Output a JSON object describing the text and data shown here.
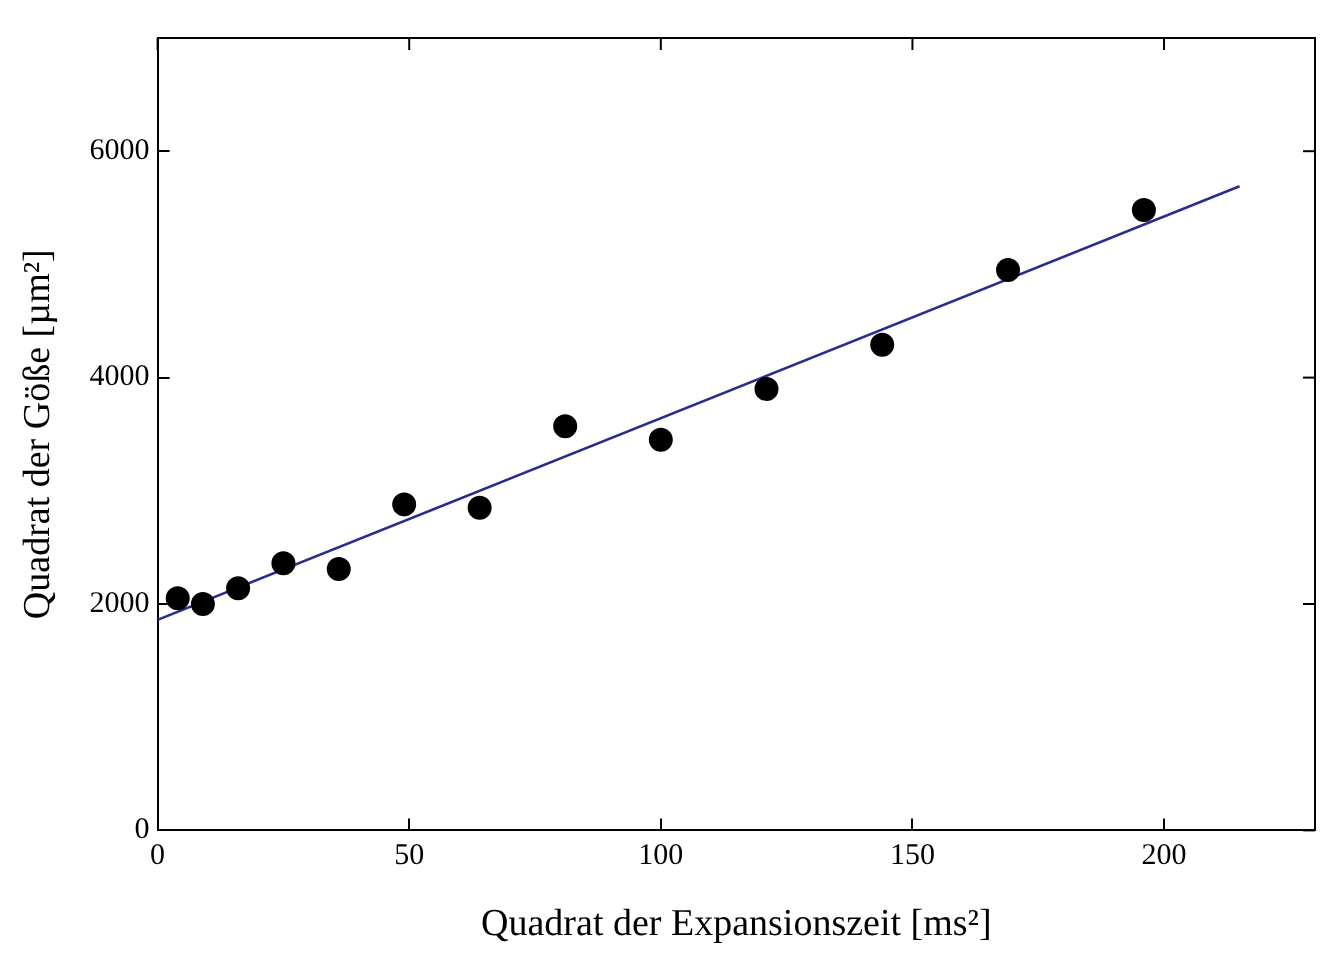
{
  "chart_data": {
    "type": "scatter",
    "xlabel": "Quadrat der Expansionszeit [ms²]",
    "ylabel": "Quadrat der Göße [µm²]",
    "xlim": [
      0,
      230
    ],
    "xticks": [
      0,
      50,
      100,
      150,
      200
    ],
    "ylim": [
      0,
      7000
    ],
    "yticks": [
      0,
      2000,
      4000,
      6000
    ],
    "grid": false,
    "legend": false,
    "series": [
      {
        "color": "#000000",
        "marker": "circle",
        "x": [
          4,
          9,
          16,
          25,
          36,
          49,
          64,
          81,
          100,
          121,
          144,
          169,
          196
        ],
        "values": [
          2050,
          2000,
          2140,
          2360,
          2310,
          2880,
          2850,
          3570,
          3450,
          3900,
          4290,
          4950,
          5480
        ]
      },
      {
        "type": "line",
        "color": "#2b2b8f",
        "x": [
          0,
          215
        ],
        "values": [
          1860,
          5690
        ]
      }
    ]
  }
}
